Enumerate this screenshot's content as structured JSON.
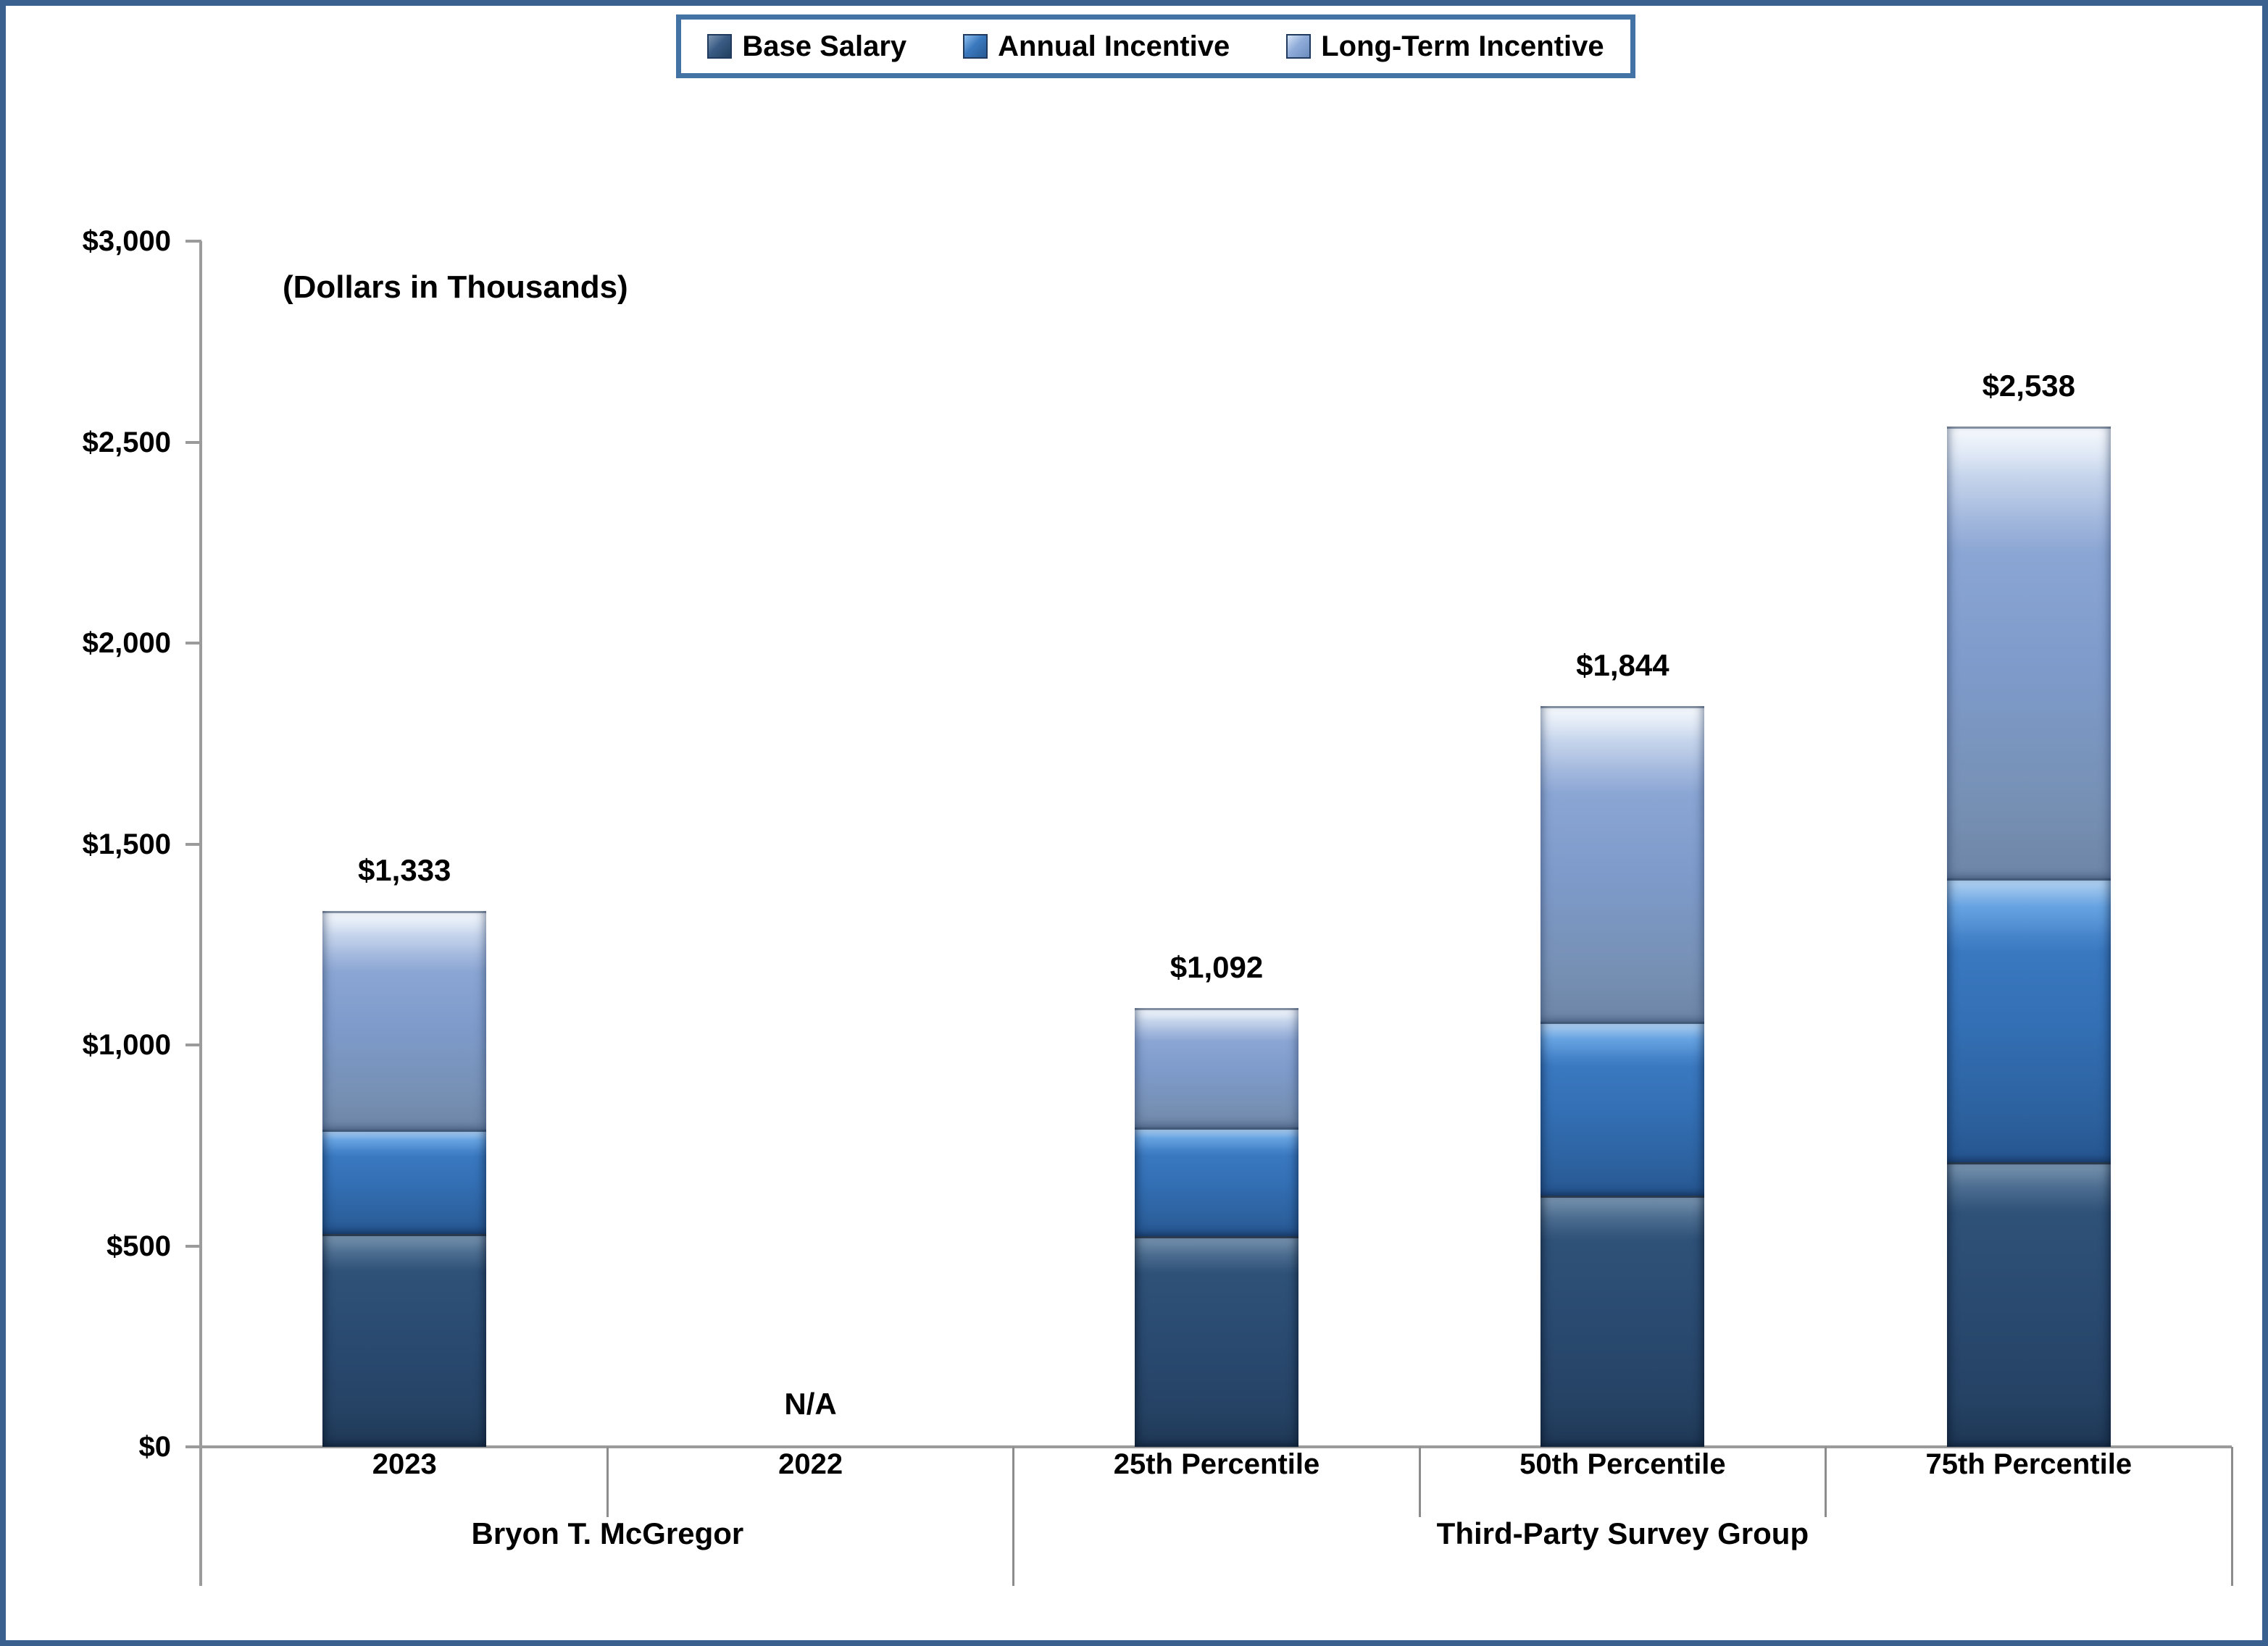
{
  "frame": {
    "border_color": "#3A6090"
  },
  "legend": {
    "items": [
      {
        "label": "Base Salary",
        "swatch_color": "#2A4A70"
      },
      {
        "label": "Annual Incentive",
        "swatch_color": "#336FB4"
      },
      {
        "label": "Long-Term Incentive",
        "swatch_color": "#7E9BCB"
      }
    ]
  },
  "chart_data": {
    "type": "bar",
    "stacked": true,
    "note": "(Dollars in Thousands)",
    "categories": [
      "2023",
      "2022",
      "25th Percentile",
      "50th Percentile",
      "75th Percentile"
    ],
    "category_groups": [
      {
        "label": "Bryon T. McGregor",
        "from": 0,
        "to": 2
      },
      {
        "label": "Third-Party Survey Group",
        "from": 2,
        "to": 5
      }
    ],
    "series": [
      {
        "name": "Base Salary",
        "color": "#2A4A70",
        "values": [
          530,
          null,
          525,
          625,
          708
        ]
      },
      {
        "name": "Annual Incentive",
        "color": "#336FB4",
        "values": [
          260,
          null,
          270,
          433,
          706
        ]
      },
      {
        "name": "Long-Term Incentive",
        "color": "#7E9BCB",
        "values": [
          543,
          null,
          297,
          786,
          1124
        ]
      }
    ],
    "totals": [
      1333,
      null,
      1092,
      1844,
      2538
    ],
    "bar_total_labels": [
      "$1,333",
      "N/A",
      "$1,092",
      "$1,844",
      "$2,538"
    ],
    "ylim": [
      0,
      3000
    ],
    "y_ticks": [
      {
        "value": 0,
        "label": "$0"
      },
      {
        "value": 500,
        "label": "$500"
      },
      {
        "value": 1000,
        "label": "$1,000"
      },
      {
        "value": 1500,
        "label": "$1,500"
      },
      {
        "value": 2000,
        "label": "$2,000"
      },
      {
        "value": 2500,
        "label": "$2,500"
      },
      {
        "value": 3000,
        "label": "$3,000"
      }
    ],
    "grid": false,
    "legend_position": "top"
  }
}
